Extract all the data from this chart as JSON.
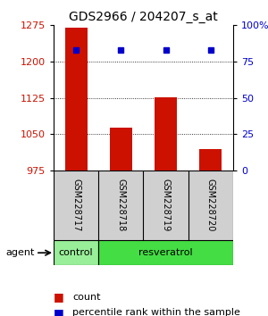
{
  "title": "GDS2966 / 204207_s_at",
  "samples": [
    "GSM228717",
    "GSM228718",
    "GSM228719",
    "GSM228720"
  ],
  "counts": [
    1270,
    1063,
    1127,
    1020
  ],
  "percentile_ranks": [
    83,
    83,
    83,
    83
  ],
  "ymin": 975,
  "ymax": 1275,
  "yticks": [
    975,
    1050,
    1125,
    1200,
    1275
  ],
  "y2min": 0,
  "y2max": 100,
  "y2ticks": [
    0,
    25,
    50,
    75,
    100
  ],
  "bar_color": "#cc1100",
  "dot_color": "#0000cc",
  "bar_width": 0.5,
  "groups": [
    {
      "label": "control",
      "n_samples": 1,
      "color": "#99ee99"
    },
    {
      "label": "resveratrol",
      "n_samples": 3,
      "color": "#44dd44"
    }
  ],
  "agent_label": "agent",
  "legend_count_label": "count",
  "legend_pct_label": "percentile rank within the sample",
  "title_fontsize": 10,
  "tick_fontsize": 8,
  "sample_fontsize": 7,
  "group_fontsize": 8,
  "legend_fontsize": 8
}
